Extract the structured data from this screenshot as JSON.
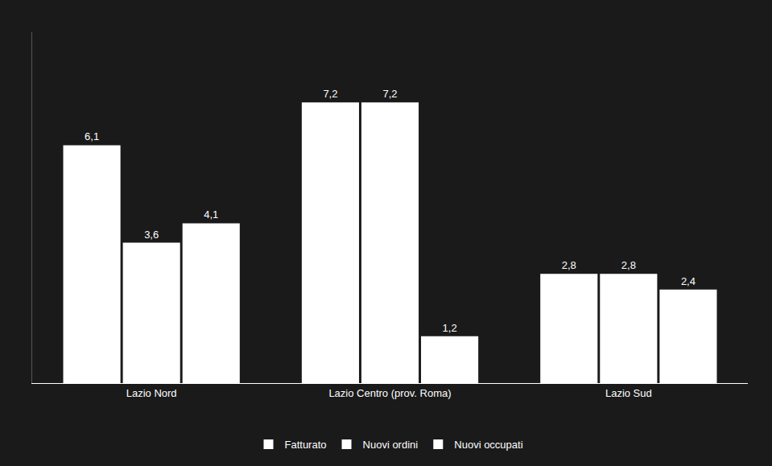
{
  "chart_data": {
    "type": "bar",
    "categories": [
      "Lazio Nord",
      "Lazio Centro (prov. Roma)",
      "Lazio Sud"
    ],
    "series": [
      {
        "name": "Fatturato",
        "color": "#ffffff",
        "values": [
          6.1,
          7.2,
          2.8
        ],
        "value_labels": [
          "6,1",
          "7,2",
          "2,8"
        ]
      },
      {
        "name": "Nuovi ordini",
        "color": "#ffffff",
        "values": [
          3.6,
          7.2,
          2.8
        ],
        "value_labels": [
          "3,6",
          "7,2",
          "2,8"
        ]
      },
      {
        "name": "Nuovi occupati",
        "color": "#ffffff",
        "values": [
          4.1,
          1.2,
          2.4
        ],
        "value_labels": [
          "4,1",
          "1,2",
          "2,4"
        ]
      }
    ],
    "ylim": [
      0,
      9.0
    ],
    "grid": false,
    "legend": "bottom",
    "data_labels": true,
    "tick_labels": "x"
  }
}
